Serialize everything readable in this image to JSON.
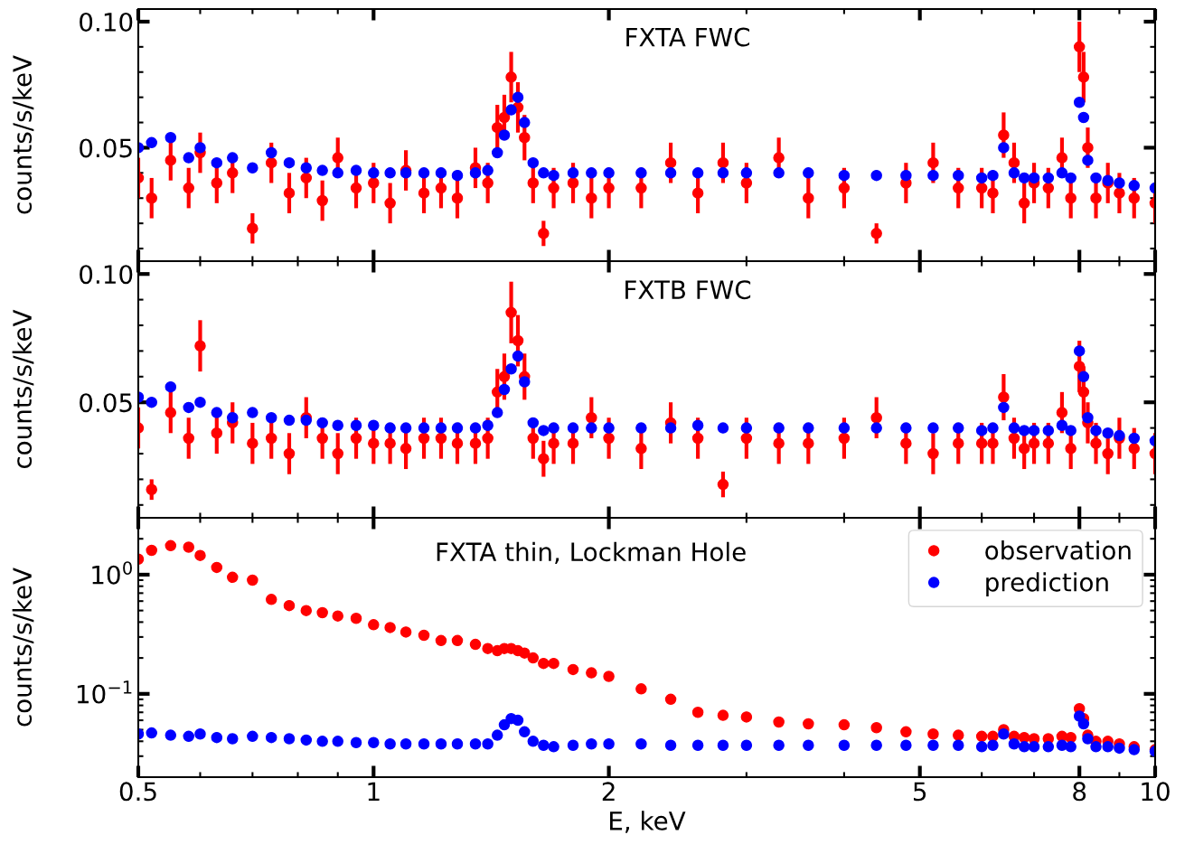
{
  "chart_data": [
    {
      "type": "scatter",
      "ylabel": "counts/s/keV",
      "annotations": [
        "FXTA FWC"
      ],
      "log": "x",
      "marker": "circle",
      "legend": false,
      "tick_labels": "y",
      "xlim": [
        0.5,
        10
      ],
      "xticks": [
        0.5,
        {
          "value": 0.6,
          "label": null
        },
        {
          "value": 0.7,
          "label": null
        },
        {
          "value": 0.8,
          "label": null
        },
        {
          "value": 0.9,
          "label": null
        },
        1,
        2,
        {
          "value": 3,
          "label": null
        },
        {
          "value": 4,
          "label": null
        },
        5,
        {
          "value": 6,
          "label": null
        },
        {
          "value": 7,
          "label": null
        },
        8,
        {
          "value": 9,
          "label": null
        },
        10
      ],
      "ylim": [
        0.005,
        0.105
      ],
      "yticks": [
        {
          "value": 0.01,
          "label": null
        },
        {
          "value": 0.02,
          "label": null
        },
        {
          "value": 0.03,
          "label": null
        },
        {
          "value": 0.04,
          "label": null
        },
        {
          "value": 0.05,
          "label": "0.05"
        },
        {
          "value": 0.06,
          "label": null
        },
        {
          "value": 0.07,
          "label": null
        },
        {
          "value": 0.08,
          "label": null
        },
        {
          "value": 0.09,
          "label": null
        },
        {
          "value": 0.1,
          "label": "0.10"
        }
      ],
      "x": [
        0.5,
        0.52,
        0.55,
        0.58,
        0.6,
        0.63,
        0.66,
        0.7,
        0.74,
        0.78,
        0.82,
        0.86,
        0.9,
        0.95,
        1.0,
        1.05,
        1.1,
        1.16,
        1.22,
        1.28,
        1.35,
        1.4,
        1.44,
        1.47,
        1.5,
        1.53,
        1.56,
        1.6,
        1.65,
        1.7,
        1.8,
        1.9,
        2.0,
        2.2,
        2.4,
        2.6,
        2.8,
        3.0,
        3.3,
        3.6,
        4.0,
        4.4,
        4.8,
        5.2,
        5.6,
        6.0,
        6.2,
        6.4,
        6.6,
        6.8,
        7.0,
        7.3,
        7.6,
        7.8,
        8.0,
        8.1,
        8.2,
        8.4,
        8.7,
        9.0,
        9.4,
        10.0
      ],
      "series": [
        {
          "color": "#ff0000",
          "values": [
            0.038,
            0.03,
            0.045,
            0.034,
            0.048,
            0.036,
            0.04,
            0.018,
            0.044,
            0.032,
            0.038,
            0.029,
            0.046,
            0.034,
            0.036,
            0.028,
            0.041,
            0.032,
            0.034,
            0.03,
            0.042,
            0.036,
            0.058,
            0.062,
            0.078,
            0.066,
            0.054,
            0.036,
            0.016,
            0.034,
            0.036,
            0.03,
            0.034,
            0.034,
            0.044,
            0.032,
            0.044,
            0.036,
            0.046,
            0.03,
            0.034,
            0.016,
            0.036,
            0.044,
            0.034,
            0.034,
            0.032,
            0.055,
            0.044,
            0.028,
            0.036,
            0.034,
            0.046,
            0.03,
            0.09,
            0.078,
            0.05,
            0.03,
            0.036,
            0.032,
            0.03,
            0.028
          ],
          "errors": [
            0.008,
            0.008,
            0.008,
            0.008,
            0.008,
            0.008,
            0.008,
            0.006,
            0.008,
            0.008,
            0.008,
            0.008,
            0.008,
            0.008,
            0.008,
            0.008,
            0.008,
            0.008,
            0.008,
            0.008,
            0.008,
            0.008,
            0.009,
            0.009,
            0.01,
            0.01,
            0.009,
            0.008,
            0.005,
            0.008,
            0.008,
            0.008,
            0.008,
            0.008,
            0.008,
            0.008,
            0.008,
            0.008,
            0.008,
            0.008,
            0.008,
            0.004,
            0.008,
            0.008,
            0.008,
            0.008,
            0.008,
            0.009,
            0.008,
            0.008,
            0.008,
            0.008,
            0.008,
            0.008,
            0.01,
            0.01,
            0.008,
            0.008,
            0.008,
            0.008,
            0.008,
            0.008
          ]
        },
        {
          "color": "#0000ff",
          "values": [
            0.05,
            0.052,
            0.054,
            0.046,
            0.05,
            0.044,
            0.046,
            0.042,
            0.048,
            0.044,
            0.042,
            0.041,
            0.04,
            0.041,
            0.04,
            0.04,
            0.04,
            0.04,
            0.04,
            0.039,
            0.04,
            0.041,
            0.048,
            0.055,
            0.065,
            0.07,
            0.06,
            0.044,
            0.04,
            0.039,
            0.04,
            0.04,
            0.04,
            0.04,
            0.04,
            0.04,
            0.04,
            0.04,
            0.04,
            0.04,
            0.039,
            0.039,
            0.039,
            0.039,
            0.039,
            0.038,
            0.039,
            0.05,
            0.04,
            0.038,
            0.038,
            0.038,
            0.04,
            0.038,
            0.068,
            0.062,
            0.045,
            0.038,
            0.037,
            0.036,
            0.035,
            0.034
          ]
        }
      ]
    },
    {
      "type": "scatter",
      "ylabel": "counts/s/keV",
      "annotations": [
        "FXTB FWC"
      ],
      "log": "x",
      "marker": "circle",
      "legend": false,
      "tick_labels": "y",
      "xlim": [
        0.5,
        10
      ],
      "xticks": [
        0.5,
        {
          "value": 0.6,
          "label": null
        },
        {
          "value": 0.7,
          "label": null
        },
        {
          "value": 0.8,
          "label": null
        },
        {
          "value": 0.9,
          "label": null
        },
        1,
        2,
        {
          "value": 3,
          "label": null
        },
        {
          "value": 4,
          "label": null
        },
        5,
        {
          "value": 6,
          "label": null
        },
        {
          "value": 7,
          "label": null
        },
        8,
        {
          "value": 9,
          "label": null
        },
        10
      ],
      "ylim": [
        0.005,
        0.105
      ],
      "yticks": [
        {
          "value": 0.01,
          "label": null
        },
        {
          "value": 0.02,
          "label": null
        },
        {
          "value": 0.03,
          "label": null
        },
        {
          "value": 0.04,
          "label": null
        },
        {
          "value": 0.05,
          "label": "0.05"
        },
        {
          "value": 0.06,
          "label": null
        },
        {
          "value": 0.07,
          "label": null
        },
        {
          "value": 0.08,
          "label": null
        },
        {
          "value": 0.09,
          "label": null
        },
        {
          "value": 0.1,
          "label": "0.10"
        }
      ],
      "x": [
        0.5,
        0.52,
        0.55,
        0.58,
        0.6,
        0.63,
        0.66,
        0.7,
        0.74,
        0.78,
        0.82,
        0.86,
        0.9,
        0.95,
        1.0,
        1.05,
        1.1,
        1.16,
        1.22,
        1.28,
        1.35,
        1.4,
        1.44,
        1.47,
        1.5,
        1.53,
        1.56,
        1.6,
        1.65,
        1.7,
        1.8,
        1.9,
        2.0,
        2.2,
        2.4,
        2.6,
        2.8,
        3.0,
        3.3,
        3.6,
        4.0,
        4.4,
        4.8,
        5.2,
        5.6,
        6.0,
        6.2,
        6.4,
        6.6,
        6.8,
        7.0,
        7.3,
        7.6,
        7.8,
        8.0,
        8.1,
        8.2,
        8.4,
        8.7,
        9.0,
        9.4,
        10.0
      ],
      "series": [
        {
          "color": "#ff0000",
          "values": [
            0.04,
            0.016,
            0.046,
            0.036,
            0.072,
            0.038,
            0.042,
            0.034,
            0.036,
            0.03,
            0.044,
            0.036,
            0.03,
            0.036,
            0.034,
            0.034,
            0.032,
            0.036,
            0.036,
            0.034,
            0.034,
            0.036,
            0.054,
            0.06,
            0.085,
            0.074,
            0.06,
            0.036,
            0.028,
            0.034,
            0.034,
            0.044,
            0.036,
            0.032,
            0.042,
            0.036,
            0.018,
            0.036,
            0.034,
            0.034,
            0.036,
            0.044,
            0.034,
            0.03,
            0.034,
            0.034,
            0.034,
            0.052,
            0.036,
            0.032,
            0.034,
            0.034,
            0.046,
            0.032,
            0.064,
            0.054,
            0.042,
            0.034,
            0.03,
            0.036,
            0.032,
            0.03
          ],
          "errors": [
            0.008,
            0.004,
            0.008,
            0.008,
            0.01,
            0.008,
            0.008,
            0.008,
            0.008,
            0.008,
            0.008,
            0.008,
            0.008,
            0.008,
            0.008,
            0.008,
            0.008,
            0.008,
            0.008,
            0.008,
            0.008,
            0.008,
            0.009,
            0.009,
            0.012,
            0.01,
            0.009,
            0.008,
            0.007,
            0.008,
            0.008,
            0.008,
            0.008,
            0.008,
            0.008,
            0.008,
            0.005,
            0.008,
            0.008,
            0.008,
            0.008,
            0.008,
            0.008,
            0.008,
            0.008,
            0.008,
            0.008,
            0.009,
            0.008,
            0.008,
            0.008,
            0.008,
            0.008,
            0.008,
            0.01,
            0.01,
            0.008,
            0.008,
            0.008,
            0.008,
            0.008,
            0.008
          ]
        },
        {
          "color": "#0000ff",
          "values": [
            0.052,
            0.05,
            0.056,
            0.048,
            0.05,
            0.046,
            0.044,
            0.046,
            0.044,
            0.043,
            0.043,
            0.042,
            0.041,
            0.041,
            0.041,
            0.04,
            0.04,
            0.04,
            0.04,
            0.04,
            0.04,
            0.041,
            0.046,
            0.055,
            0.063,
            0.068,
            0.058,
            0.042,
            0.039,
            0.04,
            0.04,
            0.04,
            0.04,
            0.04,
            0.04,
            0.041,
            0.04,
            0.04,
            0.04,
            0.04,
            0.04,
            0.04,
            0.04,
            0.04,
            0.04,
            0.039,
            0.04,
            0.048,
            0.04,
            0.039,
            0.039,
            0.039,
            0.041,
            0.039,
            0.07,
            0.06,
            0.044,
            0.039,
            0.038,
            0.037,
            0.036,
            0.035
          ]
        }
      ]
    },
    {
      "type": "scatter",
      "ylabel": "counts/s/keV",
      "xlabel": "E, keV",
      "annotations": [
        "FXTA thin, Lockman Hole"
      ],
      "log": "xy",
      "marker": "circle",
      "legend": "top right",
      "xlim": [
        0.5,
        10
      ],
      "xticks": [
        0.5,
        {
          "value": 0.6,
          "label": null
        },
        {
          "value": 0.7,
          "label": null
        },
        {
          "value": 0.8,
          "label": null
        },
        {
          "value": 0.9,
          "label": null
        },
        1,
        2,
        {
          "value": 3,
          "label": null
        },
        {
          "value": 4,
          "label": null
        },
        5,
        {
          "value": 6,
          "label": null
        },
        {
          "value": 7,
          "label": null
        },
        8,
        {
          "value": 9,
          "label": null
        },
        10
      ],
      "ylim": [
        0.02,
        3
      ],
      "yticks": [
        {
          "value": 0.03,
          "label": null
        },
        {
          "value": 0.04,
          "label": null
        },
        {
          "value": 0.05,
          "label": null
        },
        {
          "value": 0.06,
          "label": null
        },
        {
          "value": 0.07,
          "label": null
        },
        {
          "value": 0.08,
          "label": null
        },
        {
          "value": 0.09,
          "label": null
        },
        {
          "value": 0.1,
          "label": "10$^{−1}$"
        },
        {
          "value": 0.2,
          "label": null
        },
        {
          "value": 0.3,
          "label": null
        },
        {
          "value": 0.4,
          "label": null
        },
        {
          "value": 0.5,
          "label": null
        },
        {
          "value": 0.6,
          "label": null
        },
        {
          "value": 0.7,
          "label": null
        },
        {
          "value": 0.8,
          "label": null
        },
        {
          "value": 0.9,
          "label": null
        },
        {
          "value": 1,
          "label": "10$^{0}$"
        },
        {
          "value": 2,
          "label": null
        }
      ],
      "x": [
        0.5,
        0.52,
        0.55,
        0.58,
        0.6,
        0.63,
        0.66,
        0.7,
        0.74,
        0.78,
        0.82,
        0.86,
        0.9,
        0.95,
        1.0,
        1.05,
        1.1,
        1.16,
        1.22,
        1.28,
        1.35,
        1.4,
        1.44,
        1.47,
        1.5,
        1.53,
        1.56,
        1.6,
        1.65,
        1.7,
        1.8,
        1.9,
        2.0,
        2.2,
        2.4,
        2.6,
        2.8,
        3.0,
        3.3,
        3.6,
        4.0,
        4.4,
        4.8,
        5.2,
        5.6,
        6.0,
        6.2,
        6.4,
        6.6,
        6.8,
        7.0,
        7.3,
        7.6,
        7.8,
        8.0,
        8.1,
        8.2,
        8.4,
        8.7,
        9.0,
        9.4,
        10.0
      ],
      "series": [
        {
          "name": "observation",
          "color": "#ff0000",
          "values": [
            1.35,
            1.6,
            1.75,
            1.7,
            1.45,
            1.15,
            0.95,
            0.9,
            0.62,
            0.55,
            0.5,
            0.48,
            0.45,
            0.43,
            0.38,
            0.36,
            0.33,
            0.31,
            0.28,
            0.28,
            0.26,
            0.24,
            0.23,
            0.24,
            0.24,
            0.23,
            0.22,
            0.2,
            0.18,
            0.18,
            0.16,
            0.15,
            0.14,
            0.11,
            0.09,
            0.07,
            0.066,
            0.064,
            0.058,
            0.056,
            0.055,
            0.052,
            0.048,
            0.046,
            0.045,
            0.044,
            0.044,
            0.05,
            0.044,
            0.043,
            0.042,
            0.042,
            0.044,
            0.043,
            0.075,
            0.062,
            0.045,
            0.04,
            0.04,
            0.038,
            0.036,
            0.034
          ]
        },
        {
          "name": "prediction",
          "color": "#0000ff",
          "values": [
            0.046,
            0.047,
            0.045,
            0.044,
            0.046,
            0.043,
            0.042,
            0.044,
            0.043,
            0.042,
            0.041,
            0.04,
            0.04,
            0.039,
            0.039,
            0.038,
            0.038,
            0.038,
            0.038,
            0.038,
            0.038,
            0.038,
            0.045,
            0.055,
            0.062,
            0.06,
            0.048,
            0.04,
            0.037,
            0.036,
            0.037,
            0.038,
            0.038,
            0.038,
            0.037,
            0.037,
            0.037,
            0.037,
            0.037,
            0.037,
            0.037,
            0.037,
            0.037,
            0.037,
            0.037,
            0.036,
            0.037,
            0.046,
            0.038,
            0.036,
            0.036,
            0.036,
            0.037,
            0.036,
            0.065,
            0.056,
            0.042,
            0.036,
            0.036,
            0.035,
            0.034,
            0.033
          ]
        }
      ]
    }
  ]
}
